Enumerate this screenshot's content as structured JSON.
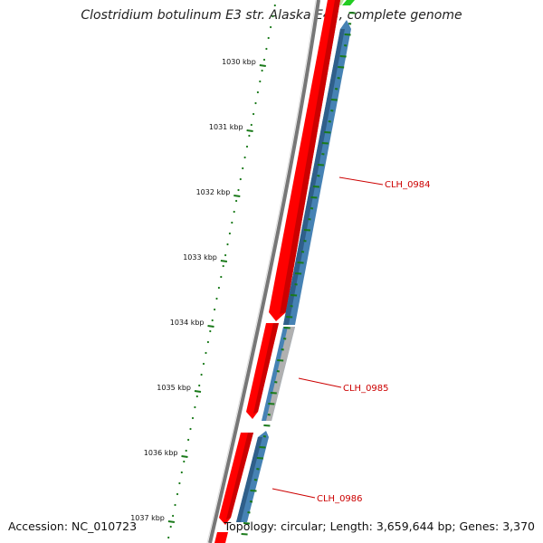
{
  "title": "Clostridium botulinum E3 str. Alaska E43, complete genome",
  "accession_text": "Accession: NC_010723",
  "summary_text": "Topology: circular; Length: 3,659,644 bp; Genes: 3,370",
  "colors": {
    "backbone": "#808080",
    "forward_gene": "#ff0000",
    "reverse_gene": "#4682b4",
    "other_gene": "#aaaaaa",
    "gc_skew_plus": "#00cc00",
    "tick": "#1a7a1a",
    "label": "#cc0000"
  },
  "scale_labels": [
    "1030 kbp",
    "1031 kbp",
    "1032 kbp",
    "1033 kbp",
    "1034 kbp",
    "1035 kbp",
    "1036 kbp",
    "1037 kbp"
  ],
  "gene_labels": [
    "CLH_0984",
    "CLH_0985",
    "CLH_0986"
  ]
}
